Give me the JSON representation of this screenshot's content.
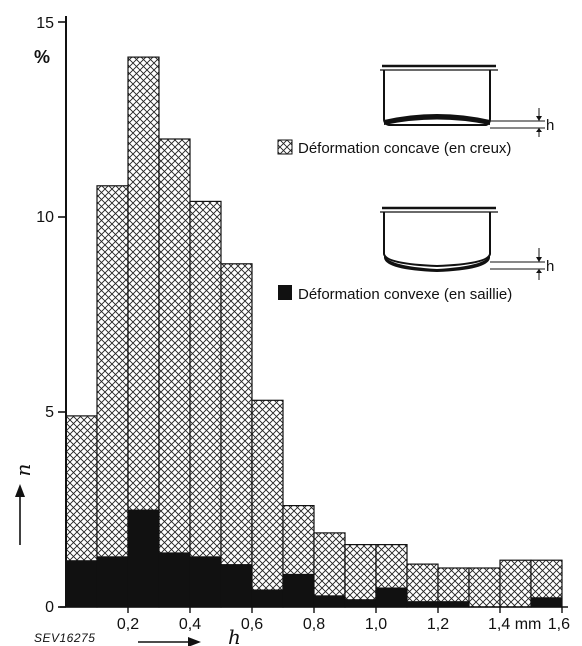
{
  "chart_data": {
    "type": "bar",
    "stacked": true,
    "bin_width": 0.1,
    "xlim": [
      0,
      1.6
    ],
    "ylim": [
      0,
      15
    ],
    "x_bins_start": [
      0.0,
      0.1,
      0.2,
      0.3,
      0.4,
      0.5,
      0.6,
      0.7,
      0.8,
      0.9,
      1.0,
      1.1,
      1.2,
      1.3,
      1.4,
      1.5
    ],
    "series": [
      {
        "name": "Déformation convexe (en saillie)",
        "color": "#111111",
        "pattern": "solid",
        "values": [
          1.2,
          1.3,
          2.5,
          1.4,
          1.3,
          1.1,
          0.45,
          0.85,
          0.3,
          0.2,
          0.5,
          0.15,
          0.15,
          0.0,
          0.0,
          0.25
        ]
      },
      {
        "name": "Déformation concave (en creux)",
        "color": "#111111",
        "pattern": "crosshatch",
        "values": [
          3.7,
          9.5,
          11.6,
          10.6,
          9.1,
          7.7,
          4.85,
          1.75,
          1.6,
          1.4,
          1.1,
          0.95,
          0.85,
          1.0,
          1.2,
          0.95
        ]
      }
    ],
    "x_tick_labels": [
      "0,2",
      "0,4",
      "0,6",
      "0,8",
      "1,0",
      "1,2",
      "1,4 mm",
      "1,6"
    ],
    "x_tick_values": [
      0.2,
      0.4,
      0.6,
      0.8,
      1.0,
      1.2,
      1.4,
      1.6
    ],
    "y_tick_labels": [
      "0",
      "5",
      "10",
      "15"
    ],
    "y_tick_values": [
      0,
      5,
      10,
      15
    ],
    "y_unit": "%",
    "xlabel": "h",
    "ylabel": "n",
    "legend_placement": "top-right",
    "grid": false
  },
  "annotations": {
    "code": "SEV16275",
    "diagram_h_label": "h"
  }
}
